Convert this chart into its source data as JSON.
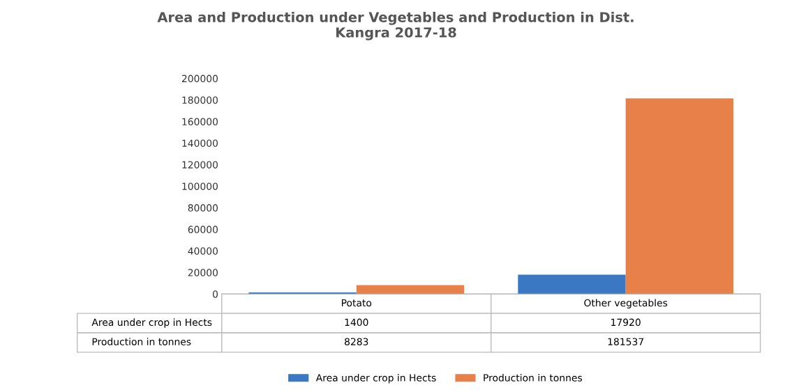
{
  "chart_data": {
    "type": "bar",
    "title": "Area and Production under Vegetables and Production in Dist.\nKangra 2017-18",
    "categories": [
      "Potato",
      "Other vegetables"
    ],
    "series": [
      {
        "name": "Area under crop in Hects",
        "color": "#3b78c4",
        "values": [
          1400,
          17920
        ]
      },
      {
        "name": "Production in tonnes",
        "color": "#e8804a",
        "values": [
          8283,
          181537
        ]
      }
    ],
    "ylim": [
      0,
      200000
    ],
    "yticks": [
      0,
      20000,
      40000,
      60000,
      80000,
      100000,
      120000,
      140000,
      160000,
      180000,
      200000
    ],
    "grid": false,
    "legend": "bottom",
    "data_labels": true
  }
}
